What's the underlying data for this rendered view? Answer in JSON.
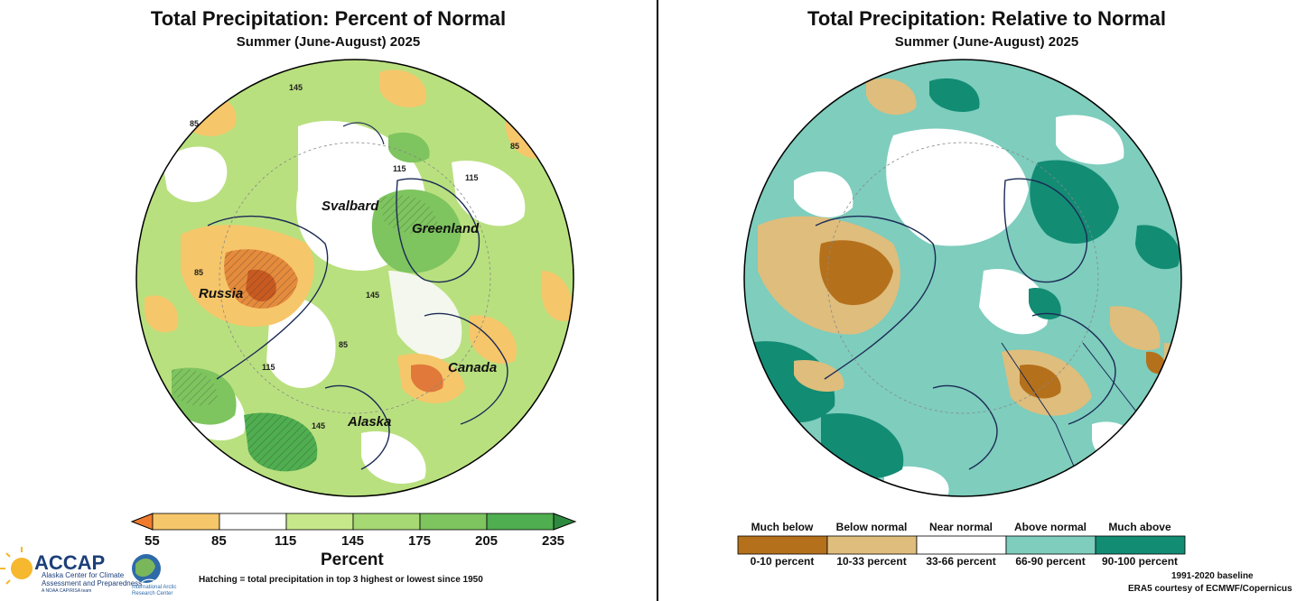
{
  "left_panel": {
    "title": "Total Precipitation: Percent of Normal",
    "subtitle": "Summer (June-August) 2025",
    "regions": [
      "Russia",
      "Svalbard",
      "Greenland",
      "Canada",
      "Alaska"
    ],
    "contour_label_85": "85",
    "contour_label_115": "115",
    "contour_label_145": "145",
    "colorbar": {
      "ticks": [
        "55",
        "85",
        "115",
        "145",
        "175",
        "205",
        "235"
      ],
      "label": "Percent",
      "colors": [
        "#f6c66a",
        "#ffffff",
        "#c6e88a",
        "#a6d873",
        "#7ec45f",
        "#4fae4f"
      ],
      "under_color": "#f07b2e",
      "over_color": "#2e8a3e"
    },
    "hatching_note": "Hatching = total precipitation in top 3 highest or lowest since 1950",
    "logo": {
      "name": "ACCAP",
      "line1": "Alaska Center for Climate",
      "line2": "Assessment and Preparedness",
      "line3": "A NOAA CAP/RISA team",
      "iarc1": "International Arctic",
      "iarc2": "Research Center"
    }
  },
  "right_panel": {
    "title": "Total Precipitation: Relative to Normal",
    "subtitle": "Summer (June-August) 2025",
    "legend": [
      {
        "top": "Much below",
        "bottom": "0-10 percent",
        "color": "#b5701c"
      },
      {
        "top": "Below normal",
        "bottom": "10-33 percent",
        "color": "#dfbd7c"
      },
      {
        "top": "Near normal",
        "bottom": "33-66 percent",
        "color": "#ffffff"
      },
      {
        "top": "Above normal",
        "bottom": "66-90 percent",
        "color": "#7ecdbd"
      },
      {
        "top": "Much above",
        "bottom": "90-100 percent",
        "color": "#138c74"
      }
    ],
    "baseline": "1991-2020 baseline",
    "credit": "ERA5 courtesy of ECMWF/Copernicus"
  }
}
